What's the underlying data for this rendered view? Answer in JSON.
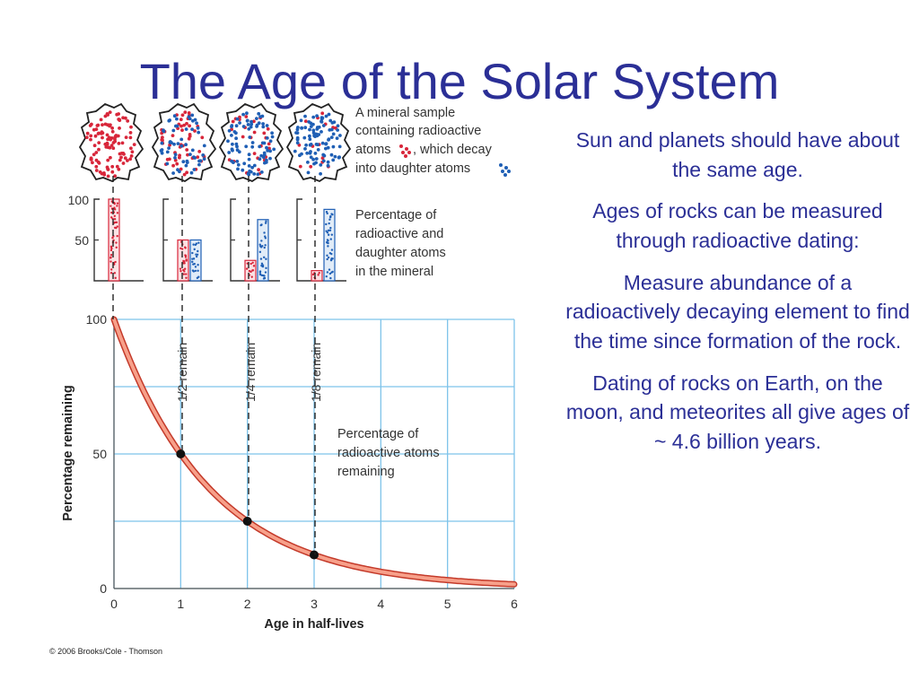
{
  "title": "The Age of the Solar System",
  "bullets": [
    "Sun and planets should have about the same age.",
    "Ages of rocks can be measured through radioactive dating:",
    "Measure abundance of a radioactively decaying element to find the time since formation of the rock.",
    "Dating of rocks on Earth, on the moon, and meteorites all give ages of ~ 4.6 billion years."
  ],
  "credit": "© 2006 Brooks/Cole - Thomson",
  "figure": {
    "mineral_caption": [
      "A mineral sample",
      "containing radioactive",
      "atoms",
      ", which decay",
      "into daughter atoms"
    ],
    "bar_caption": [
      "Percentage of",
      "radioactive and",
      "daughter atoms",
      "in the mineral"
    ],
    "bar_axis_ticks": [
      "100",
      "50"
    ],
    "bars": [
      {
        "radioactive": 100,
        "daughter": 0
      },
      {
        "radioactive": 50,
        "daughter": 50
      },
      {
        "radioactive": 25,
        "daughter": 75
      },
      {
        "radioactive": 12.5,
        "daughter": 87.5
      }
    ],
    "remain_labels": [
      "1/2 remain",
      "1/4 remain",
      "1/8 remain"
    ],
    "curve_caption": [
      "Percentage of",
      "radioactive atoms",
      "remaining"
    ],
    "colors": {
      "radioactive": "#d8263a",
      "daughter": "#1f5fb5",
      "curve": "#e8553d",
      "grid": "#7ec3ea",
      "text": "#2b2f96"
    }
  },
  "chart_data": {
    "type": "line",
    "xlabel": "Age in half-lives",
    "ylabel": "Percentage remaining",
    "x_ticks": [
      "0",
      "1",
      "2",
      "3",
      "4",
      "5",
      "6"
    ],
    "y_ticks": [
      "0",
      "50",
      "100"
    ],
    "xlim": [
      0,
      6
    ],
    "ylim": [
      0,
      100
    ],
    "grid": true,
    "series": [
      {
        "x": [
          0,
          1,
          2,
          3,
          4,
          5,
          6
        ],
        "values": [
          100,
          50,
          25,
          12.5,
          6.25,
          3.125,
          1.5625
        ]
      }
    ],
    "points": [
      {
        "x": 1,
        "y": 50
      },
      {
        "x": 2,
        "y": 25
      },
      {
        "x": 3,
        "y": 12.5
      }
    ]
  }
}
